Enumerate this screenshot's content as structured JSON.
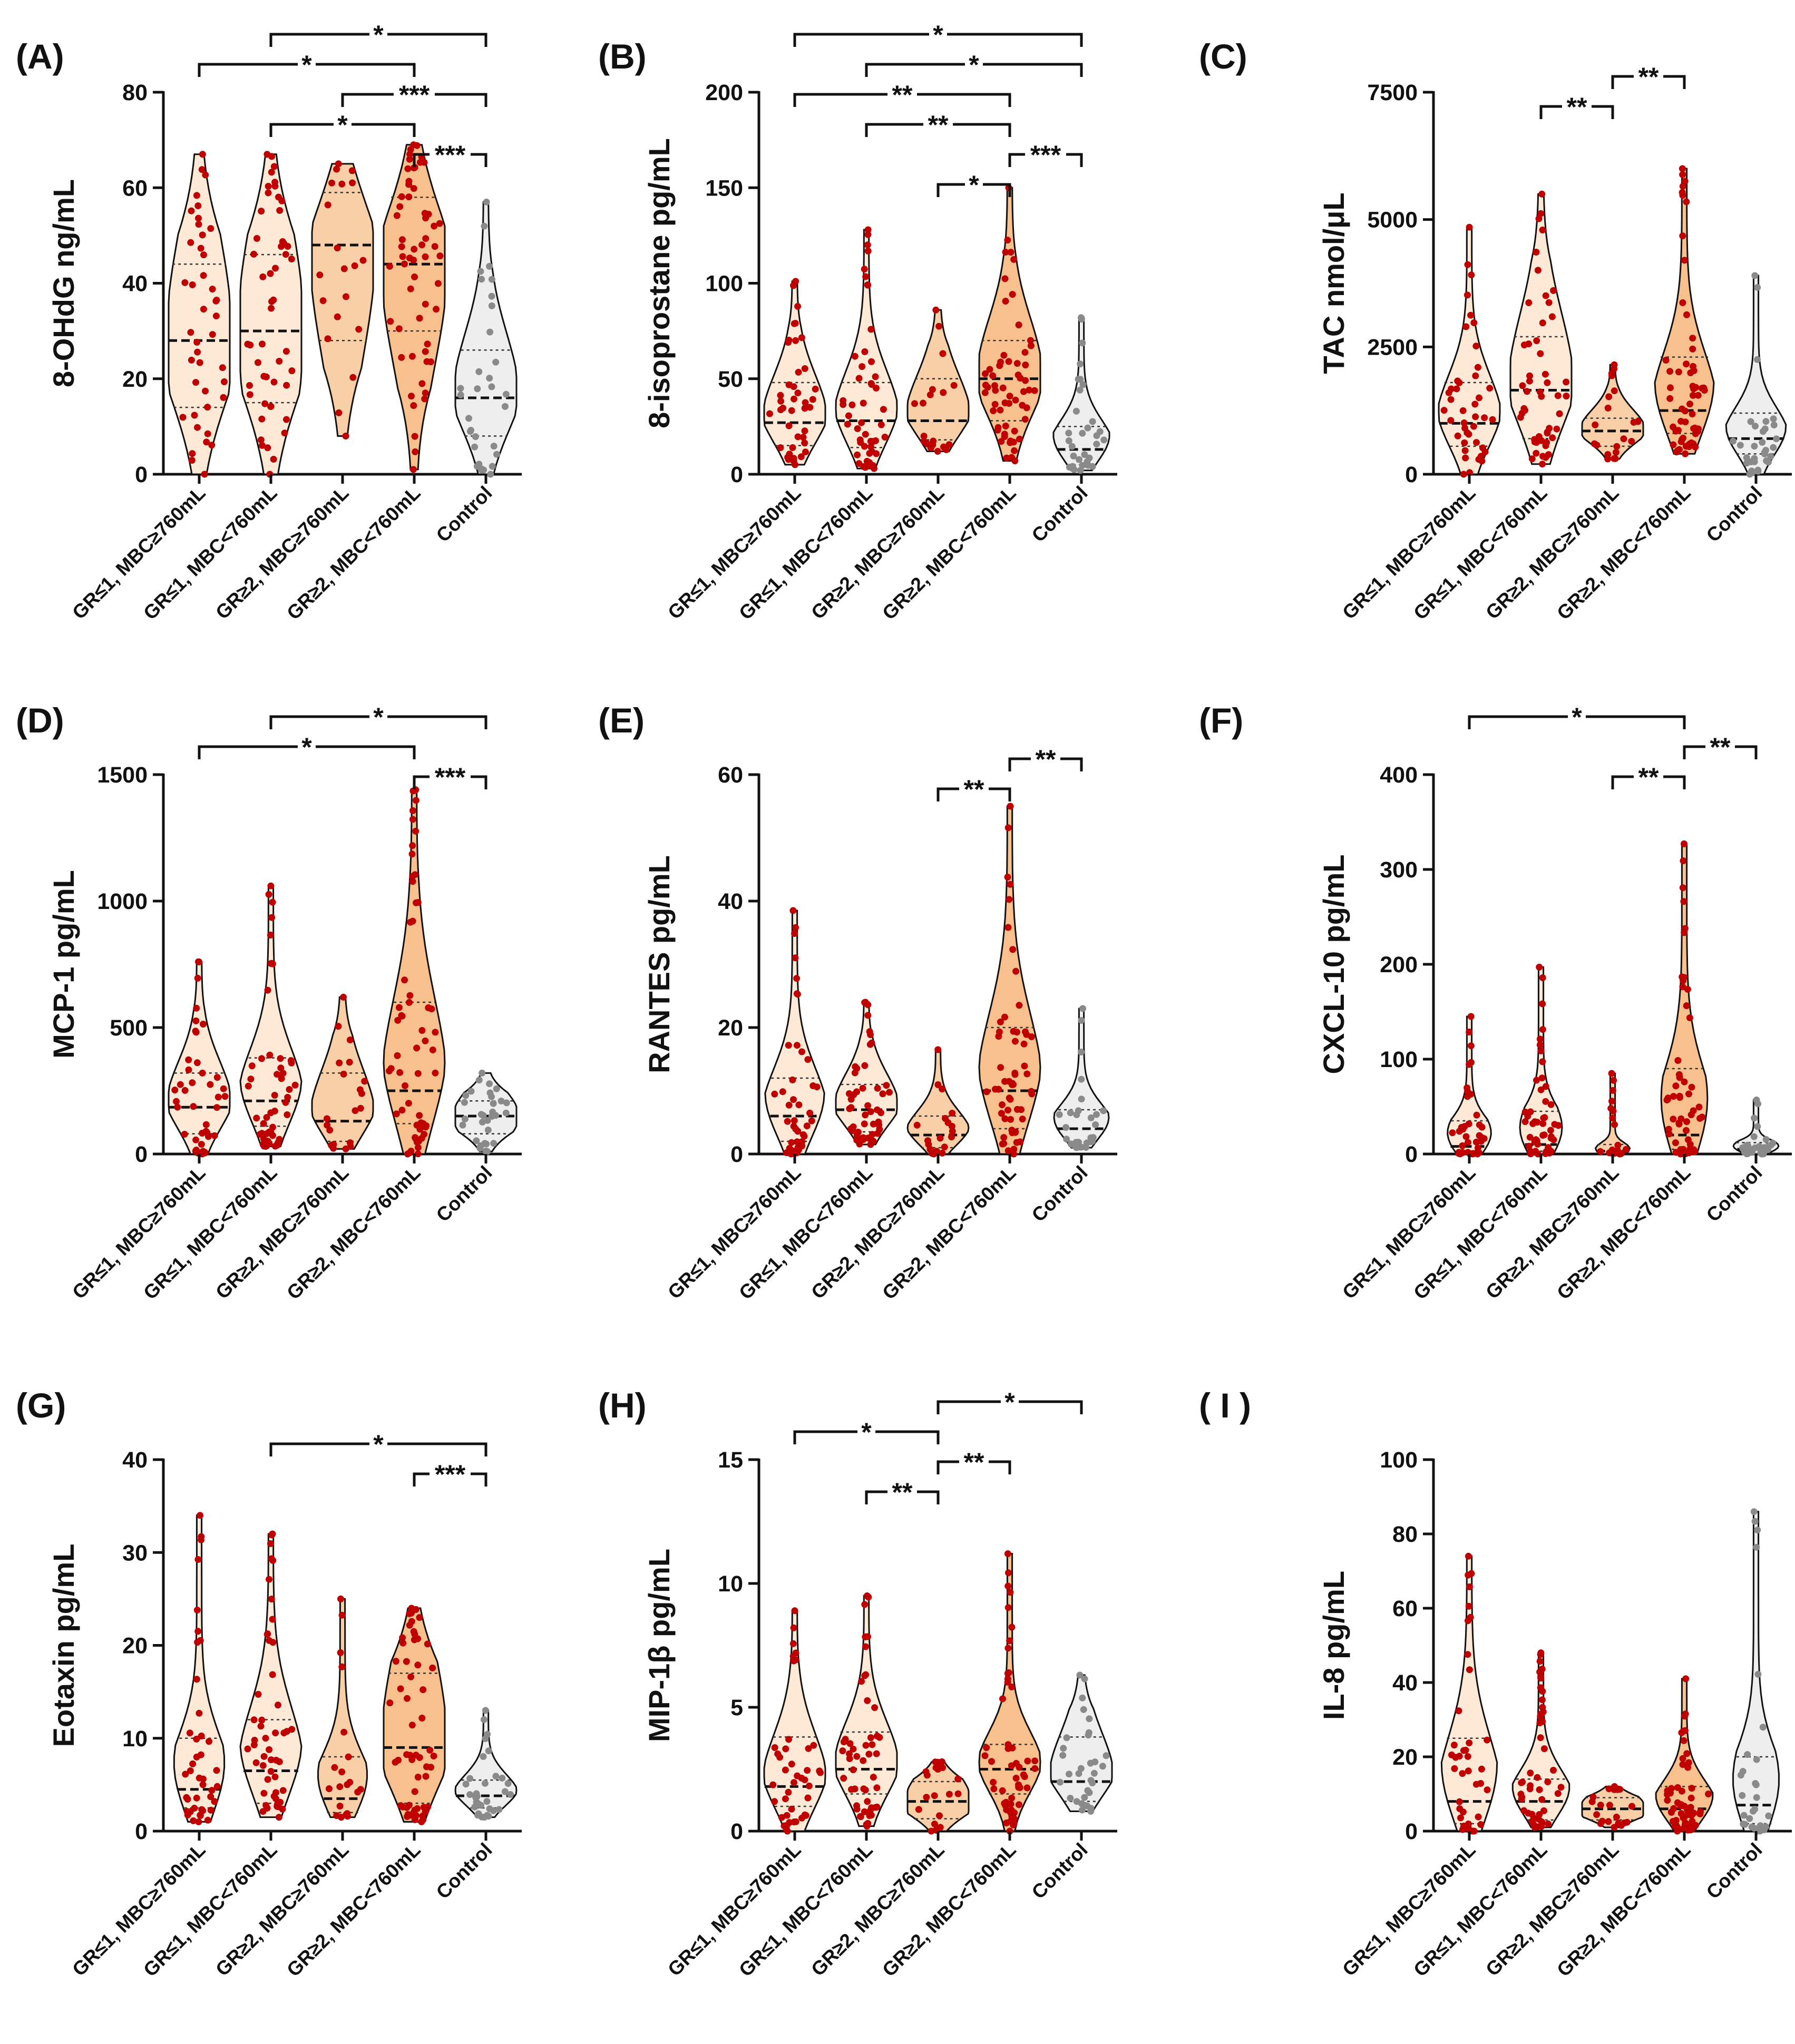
{
  "colors": {
    "violin_light": "#fde9d6",
    "violin_orange": "#f7c08d",
    "violin_control": "#eeeeee",
    "point_red": "#c00000",
    "point_grey": "#8a8a8a",
    "outline": "#111111"
  },
  "chart_data": [
    {
      "id": "A",
      "letter": "(A)",
      "type": "violin",
      "ylabel": "8-OHdG ng/mL",
      "ylim": [
        0,
        80
      ],
      "yticks": [
        "0",
        "20",
        "40",
        "60",
        "80"
      ],
      "categories": [
        "GR≤1, MBC≥760mL",
        "GR≤1, MBC<760mL",
        "GR≥2, MBC≥760mL",
        "GR≥2, MBC<760mL",
        "Control"
      ],
      "groups": [
        {
          "min": 0,
          "max": 67,
          "q1": 14,
          "median": 28,
          "q3": 44,
          "n": 42
        },
        {
          "min": 0,
          "max": 67,
          "q1": 15,
          "median": 30,
          "q3": 46,
          "n": 50
        },
        {
          "min": 8,
          "max": 65,
          "q1": 28,
          "median": 48,
          "q3": 59,
          "n": 20
        },
        {
          "min": 1,
          "max": 69,
          "q1": 30,
          "median": 44,
          "q3": 58,
          "n": 58
        },
        {
          "min": 0,
          "max": 57,
          "q1": 8,
          "median": 16,
          "q3": 26,
          "n": 32
        }
      ],
      "comparisons": [
        {
          "from": 0,
          "to": 3,
          "label": "*"
        },
        {
          "from": 1,
          "to": 3,
          "label": "*"
        },
        {
          "from": 1,
          "to": 4,
          "label": "*"
        },
        {
          "from": 2,
          "to": 4,
          "label": "***"
        },
        {
          "from": 3,
          "to": 4,
          "label": "***"
        }
      ]
    },
    {
      "id": "B",
      "letter": "(B)",
      "type": "violin",
      "ylabel": "8-isoprostane pg/mL",
      "ylim": [
        0,
        200
      ],
      "yticks": [
        "0",
        "50",
        "100",
        "150",
        "200"
      ],
      "categories": [
        "GR≤1, MBC≥760mL",
        "GR≤1, MBC<760mL",
        "GR≥2, MBC≥760mL",
        "GR≥2, MBC<760mL",
        "Control"
      ],
      "groups": [
        {
          "min": 5,
          "max": 101,
          "q1": 15,
          "median": 27,
          "q3": 48,
          "n": 42
        },
        {
          "min": 3,
          "max": 128,
          "q1": 14,
          "median": 28,
          "q3": 48,
          "n": 50
        },
        {
          "min": 12,
          "max": 86,
          "q1": 18,
          "median": 28,
          "q3": 50,
          "n": 20
        },
        {
          "min": 7,
          "max": 150,
          "q1": 28,
          "median": 50,
          "q3": 70,
          "n": 58
        },
        {
          "min": 2,
          "max": 82,
          "q1": 5,
          "median": 13,
          "q3": 25,
          "n": 32
        }
      ],
      "comparisons": [
        {
          "from": 0,
          "to": 3,
          "label": "**"
        },
        {
          "from": 0,
          "to": 4,
          "label": "*"
        },
        {
          "from": 1,
          "to": 3,
          "label": "**"
        },
        {
          "from": 1,
          "to": 4,
          "label": "*"
        },
        {
          "from": 2,
          "to": 3,
          "label": "*"
        },
        {
          "from": 3,
          "to": 4,
          "label": "***"
        }
      ]
    },
    {
      "id": "C",
      "letter": "(C)",
      "type": "violin",
      "ylabel": "TAC nmol/μL",
      "ylim": [
        0,
        7500
      ],
      "yticks": [
        "0",
        "2500",
        "5000",
        "7500"
      ],
      "categories": [
        "GR≤1, MBC≥760mL",
        "GR≤1, MBC<760mL",
        "GR≥2, MBC≥760mL",
        "GR≥2, MBC<760mL",
        "Control"
      ],
      "groups": [
        {
          "min": 0,
          "max": 4850,
          "q1": 550,
          "median": 1000,
          "q3": 1800,
          "n": 42
        },
        {
          "min": 200,
          "max": 5500,
          "q1": 700,
          "median": 1650,
          "q3": 2700,
          "n": 50
        },
        {
          "min": 300,
          "max": 2150,
          "q1": 550,
          "median": 850,
          "q3": 1100,
          "n": 20
        },
        {
          "min": 400,
          "max": 6000,
          "q1": 800,
          "median": 1250,
          "q3": 2300,
          "n": 58
        },
        {
          "min": 0,
          "max": 3900,
          "q1": 400,
          "median": 700,
          "q3": 1200,
          "n": 32
        }
      ],
      "comparisons": [
        {
          "from": 1,
          "to": 2,
          "label": "**"
        },
        {
          "from": 2,
          "to": 3,
          "label": "**"
        }
      ]
    },
    {
      "id": "D",
      "letter": "(D)",
      "type": "violin",
      "ylabel": "MCP-1 pg/mL",
      "ylim": [
        0,
        1500
      ],
      "yticks": [
        "0",
        "500",
        "1000",
        "1500"
      ],
      "categories": [
        "GR≤1, MBC≥760mL",
        "GR≤1, MBC<760mL",
        "GR≥2, MBC≥760mL",
        "GR≥2, MBC<760mL",
        "Control"
      ],
      "groups": [
        {
          "min": 0,
          "max": 760,
          "q1": 80,
          "median": 185,
          "q3": 320,
          "n": 42
        },
        {
          "min": 30,
          "max": 1060,
          "q1": 110,
          "median": 210,
          "q3": 380,
          "n": 50
        },
        {
          "min": 20,
          "max": 620,
          "q1": 50,
          "median": 130,
          "q3": 320,
          "n": 20
        },
        {
          "min": 0,
          "max": 1440,
          "q1": 120,
          "median": 250,
          "q3": 600,
          "n": 58
        },
        {
          "min": 10,
          "max": 320,
          "q1": 80,
          "median": 150,
          "q3": 210,
          "n": 32
        }
      ],
      "comparisons": [
        {
          "from": 0,
          "to": 3,
          "label": "*"
        },
        {
          "from": 1,
          "to": 4,
          "label": "*"
        },
        {
          "from": 3,
          "to": 4,
          "label": "***"
        }
      ]
    },
    {
      "id": "E",
      "letter": "(E)",
      "type": "violin",
      "ylabel": "RANTES pg/mL",
      "ylim": [
        0,
        60
      ],
      "yticks": [
        "0",
        "20",
        "40",
        "60"
      ],
      "categories": [
        "GR≤1, MBC≥760mL",
        "GR≤1, MBC<760mL",
        "GR≥2, MBC≥760mL",
        "GR≥2, MBC<760mL",
        "Control"
      ],
      "groups": [
        {
          "min": 0,
          "max": 38.5,
          "q1": 2,
          "median": 6,
          "q3": 12,
          "n": 42
        },
        {
          "min": 1.5,
          "max": 24,
          "q1": 3.5,
          "median": 7,
          "q3": 11,
          "n": 50
        },
        {
          "min": 0,
          "max": 16.5,
          "q1": 1,
          "median": 3,
          "q3": 6,
          "n": 20
        },
        {
          "min": 0,
          "max": 55,
          "q1": 4,
          "median": 10,
          "q3": 20,
          "n": 58
        },
        {
          "min": 1,
          "max": 23,
          "q1": 2,
          "median": 4,
          "q3": 7,
          "n": 32
        }
      ],
      "comparisons": [
        {
          "from": 2,
          "to": 3,
          "label": "**"
        },
        {
          "from": 3,
          "to": 4,
          "label": "**"
        }
      ]
    },
    {
      "id": "F",
      "letter": "(F)",
      "type": "violin",
      "ylabel": "CXCL-10 pg/mL",
      "ylim": [
        0,
        400
      ],
      "yticks": [
        "0",
        "100",
        "200",
        "300",
        "400"
      ],
      "categories": [
        "GR≤1, MBC≥760mL",
        "GR≤1, MBC<760mL",
        "GR≥2, MBC≥760mL",
        "GR≥2, MBC<760mL",
        "Control"
      ],
      "groups": [
        {
          "min": 0,
          "max": 145,
          "q1": 2,
          "median": 8,
          "q3": 35,
          "n": 42
        },
        {
          "min": 0,
          "max": 197,
          "q1": 3,
          "median": 10,
          "q3": 45,
          "n": 50
        },
        {
          "min": 0,
          "max": 85,
          "q1": 1,
          "median": 3,
          "q3": 10,
          "n": 20
        },
        {
          "min": 0,
          "max": 327,
          "q1": 5,
          "median": 20,
          "q3": 90,
          "n": 58
        },
        {
          "min": 0,
          "max": 57,
          "q1": 2,
          "median": 5,
          "q3": 12,
          "n": 32
        }
      ],
      "comparisons": [
        {
          "from": 0,
          "to": 3,
          "label": "*"
        },
        {
          "from": 2,
          "to": 3,
          "label": "**"
        },
        {
          "from": 3,
          "to": 4,
          "label": "**"
        }
      ]
    },
    {
      "id": "G",
      "letter": "(G)",
      "type": "violin",
      "ylabel": "Eotaxin pg/mL",
      "ylim": [
        0,
        40
      ],
      "yticks": [
        "0",
        "10",
        "20",
        "30",
        "40"
      ],
      "categories": [
        "GR≤1, MBC≥760mL",
        "GR≤1, MBC<760mL",
        "GR≥2, MBC≥760mL",
        "GR≥2, MBC<760mL",
        "Control"
      ],
      "groups": [
        {
          "min": 1,
          "max": 34,
          "q1": 2.5,
          "median": 4.5,
          "q3": 10,
          "n": 42
        },
        {
          "min": 1.5,
          "max": 32,
          "q1": 3,
          "median": 6.5,
          "q3": 12,
          "n": 50
        },
        {
          "min": 1.5,
          "max": 25,
          "q1": 2,
          "median": 3.5,
          "q3": 8,
          "n": 20
        },
        {
          "min": 1,
          "max": 24,
          "q1": 3,
          "median": 9,
          "q3": 17,
          "n": 58
        },
        {
          "min": 1.5,
          "max": 13,
          "q1": 2.5,
          "median": 3.8,
          "q3": 5.5,
          "n": 32
        }
      ],
      "comparisons": [
        {
          "from": 1,
          "to": 4,
          "label": "*"
        },
        {
          "from": 3,
          "to": 4,
          "label": "***"
        }
      ]
    },
    {
      "id": "H",
      "letter": "(H)",
      "type": "violin",
      "ylabel": "MIP-1β pg/mL",
      "ylim": [
        0,
        15
      ],
      "yticks": [
        "0",
        "5",
        "10",
        "15"
      ],
      "categories": [
        "GR≤1, MBC≥760mL",
        "GR≤1, MBC<760mL",
        "GR≥2, MBC≥760mL",
        "GR≥2, MBC<760mL",
        "Control"
      ],
      "groups": [
        {
          "min": 0,
          "max": 8.9,
          "q1": 1,
          "median": 1.8,
          "q3": 3.8,
          "n": 42
        },
        {
          "min": 0.2,
          "max": 9.5,
          "q1": 1.5,
          "median": 2.5,
          "q3": 4,
          "n": 50
        },
        {
          "min": 0,
          "max": 2.8,
          "q1": 0.5,
          "median": 1.2,
          "q3": 2,
          "n": 20
        },
        {
          "min": 0,
          "max": 11.2,
          "q1": 1.5,
          "median": 2.5,
          "q3": 3.5,
          "n": 58
        },
        {
          "min": 0.8,
          "max": 6.3,
          "q1": 1.2,
          "median": 2,
          "q3": 3.8,
          "n": 32
        }
      ],
      "comparisons": [
        {
          "from": 0,
          "to": 2,
          "label": "*"
        },
        {
          "from": 1,
          "to": 2,
          "label": "**"
        },
        {
          "from": 2,
          "to": 3,
          "label": "**"
        },
        {
          "from": 2,
          "to": 4,
          "label": "*"
        }
      ]
    },
    {
      "id": "I",
      "letter": "( I )",
      "type": "violin",
      "ylabel": "IL-8 pg/mL",
      "ylim": [
        0,
        100
      ],
      "yticks": [
        "0",
        "20",
        "40",
        "60",
        "80",
        "100"
      ],
      "categories": [
        "GR≤1, MBC≥760mL",
        "GR≤1, MBC<760mL",
        "GR≥2, MBC≥760mL",
        "GR≥2, MBC<760mL",
        "Control"
      ],
      "groups": [
        {
          "min": 0,
          "max": 74,
          "q1": 2,
          "median": 8,
          "q3": 25,
          "n": 42
        },
        {
          "min": 1,
          "max": 48,
          "q1": 3,
          "median": 8,
          "q3": 14,
          "n": 50
        },
        {
          "min": 1,
          "max": 12,
          "q1": 3,
          "median": 6,
          "q3": 9,
          "n": 20
        },
        {
          "min": 0,
          "max": 41,
          "q1": 2,
          "median": 6,
          "q3": 12,
          "n": 58
        },
        {
          "min": 0,
          "max": 86,
          "q1": 2,
          "median": 7,
          "q3": 20,
          "n": 32
        }
      ],
      "comparisons": []
    }
  ]
}
